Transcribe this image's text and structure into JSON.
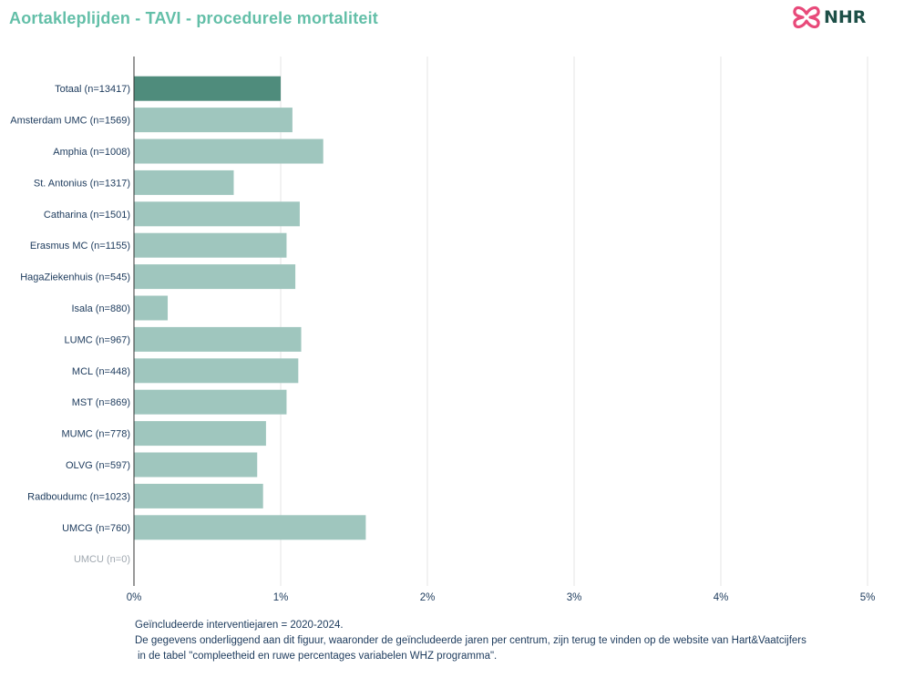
{
  "header": {
    "title": "Aortakleplijden - TAVI - procedurele mortaliteit",
    "logo_text": "NHR",
    "logo_icon": "nhr-heart-cross-logo",
    "title_color": "#63bfa8",
    "logo_color": "#e84a7a"
  },
  "chart_data": {
    "type": "bar",
    "orientation": "horizontal",
    "categories": [
      "Totaal (n=13417)",
      "Amsterdam UMC (n=1569)",
      "Amphia (n=1008)",
      "St. Antonius (n=1317)",
      "Catharina (n=1501)",
      "Erasmus MC (n=1155)",
      "HagaZiekenhuis (n=545)",
      "Isala (n=880)",
      "LUMC (n=967)",
      "MCL (n=448)",
      "MST (n=869)",
      "MUMC (n=778)",
      "OLVG (n=597)",
      "Radboudumc (n=1023)",
      "UMCG (n=760)",
      "UMCU (n=0)"
    ],
    "values": [
      1.0,
      1.08,
      1.29,
      0.68,
      1.13,
      1.04,
      1.1,
      0.23,
      1.14,
      1.12,
      1.04,
      0.9,
      0.84,
      0.88,
      1.58,
      null
    ],
    "unit": "%",
    "xlim": [
      0,
      5
    ],
    "xticks": [
      "0%",
      "1%",
      "2%",
      "3%",
      "4%",
      "5%"
    ],
    "title": "",
    "xlabel": "",
    "ylabel": "",
    "grid": "vertical",
    "legend": "none",
    "colors": {
      "total": "#4f8c7c",
      "center": "#9fc6be",
      "label": "#1c3a5c",
      "label_empty": "#a0a8b0",
      "grid": "#e6e6e6",
      "axis": "#333333"
    }
  },
  "footnote": {
    "line1": "Geïncludeerde interventiejaren = 2020-2024.",
    "line2": "De gegevens onderliggend aan dit figuur, waaronder de geïncludeerde jaren per centrum, zijn terug te vinden op de website van Hart&Vaatcijfers",
    "line3": "in de tabel \"compleetheid en ruwe percentages variabelen WHZ programma\"."
  }
}
